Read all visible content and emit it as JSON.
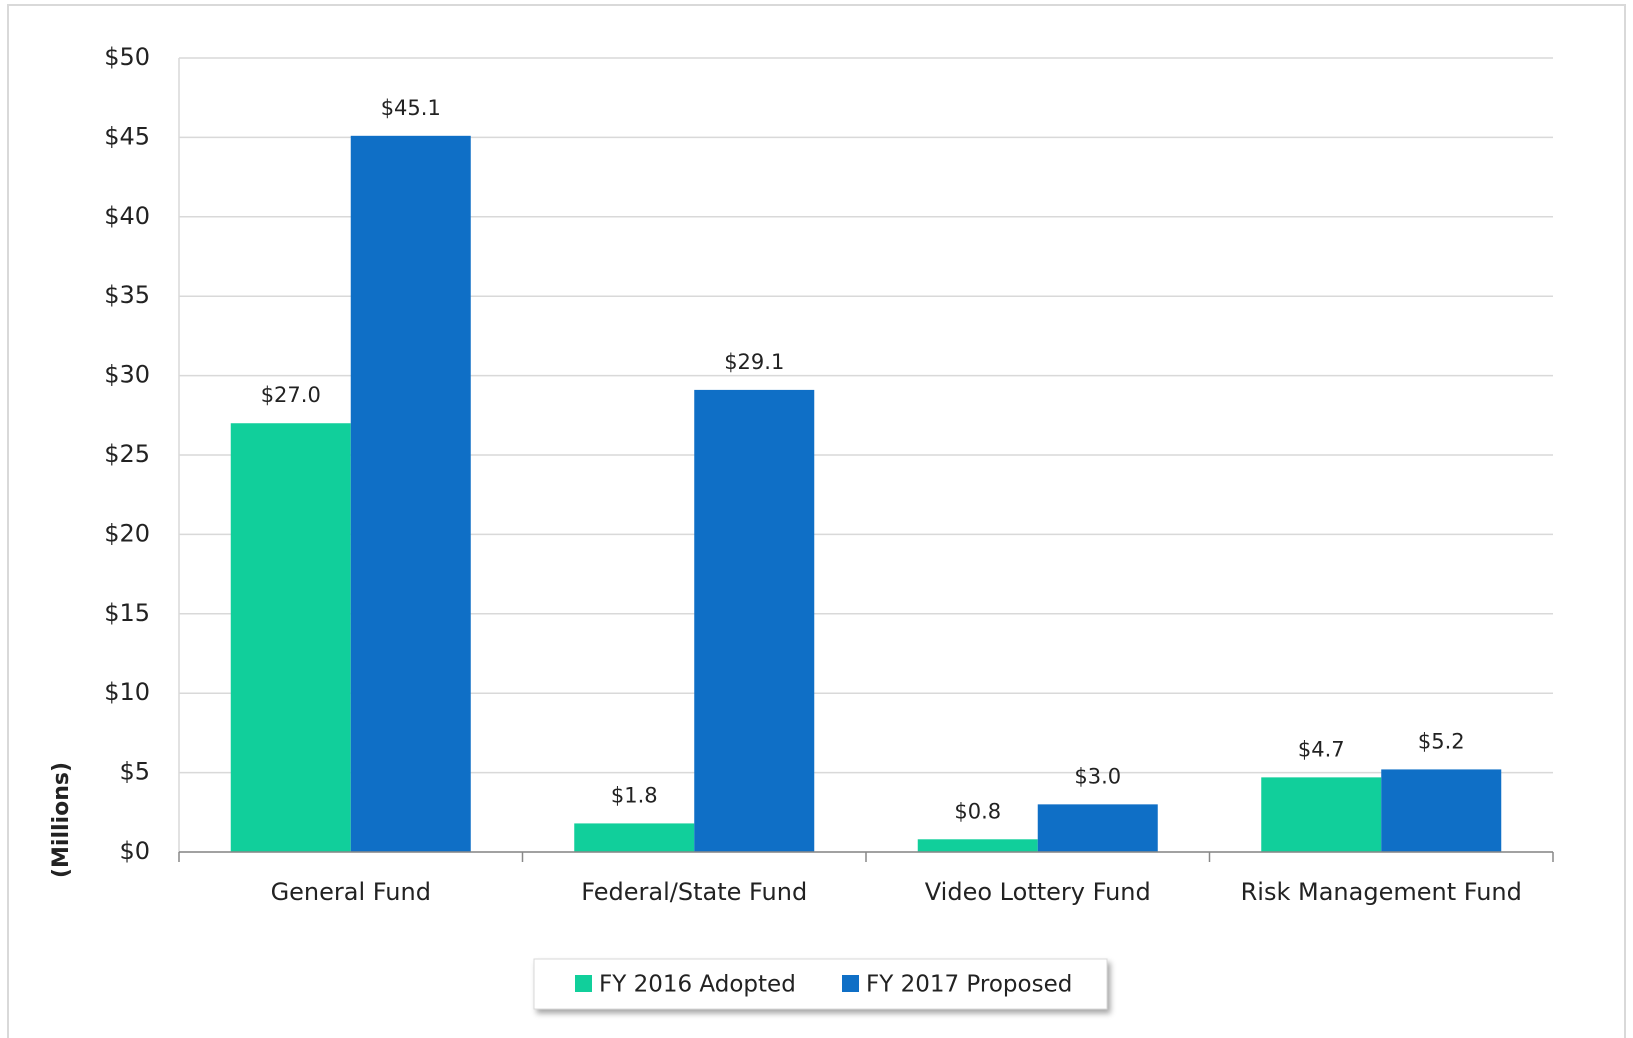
{
  "chart_data": {
    "type": "bar",
    "y_label": "(Millions)",
    "categories": [
      "General Fund",
      "Federal/State Fund",
      "Video Lottery Fund",
      "Risk Management Fund"
    ],
    "series": [
      {
        "name": "FY 2016 Adopted",
        "color": "#11cf9b",
        "values": [
          27.0,
          1.8,
          0.8,
          4.7
        ],
        "value_labels": [
          "$27.0",
          "$1.8",
          "$0.8",
          "$4.7"
        ]
      },
      {
        "name": "FY 2017 Proposed",
        "color": "#0f6fc6",
        "values": [
          45.1,
          29.1,
          3.0,
          5.2
        ],
        "value_labels": [
          "$45.1",
          "$29.1",
          "$3.0",
          "$5.2"
        ]
      }
    ],
    "ylim": [
      0,
      50
    ],
    "yticks": [
      {
        "value": 0,
        "label": "$0"
      },
      {
        "value": 5,
        "label": "$5"
      },
      {
        "value": 10,
        "label": "$10"
      },
      {
        "value": 15,
        "label": "$15"
      },
      {
        "value": 20,
        "label": "$20"
      },
      {
        "value": 25,
        "label": "$25"
      },
      {
        "value": 30,
        "label": "$30"
      },
      {
        "value": 35,
        "label": "$35"
      },
      {
        "value": 40,
        "label": "$40"
      },
      {
        "value": 45,
        "label": "$45"
      },
      {
        "value": 50,
        "label": "$50"
      }
    ],
    "grid": true,
    "legend": "bottom"
  }
}
